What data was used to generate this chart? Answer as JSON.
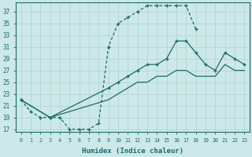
{
  "xlabel": "Humidex (Indice chaleur)",
  "xlim": [
    -0.5,
    23.5
  ],
  "ylim": [
    16.5,
    38.5
  ],
  "xticks": [
    0,
    1,
    2,
    3,
    4,
    5,
    6,
    7,
    8,
    9,
    10,
    11,
    12,
    13,
    14,
    15,
    16,
    17,
    18,
    19,
    20,
    21,
    22,
    23
  ],
  "yticks": [
    17,
    19,
    21,
    23,
    25,
    27,
    29,
    31,
    33,
    35,
    37
  ],
  "bg_color": "#cce8e8",
  "line_color": "#1a6b6b",
  "grid_color": "#b8d8d8",
  "curve1_x": [
    0,
    1,
    2,
    3,
    4,
    5,
    6,
    7,
    8,
    9,
    10,
    11,
    12,
    13,
    14,
    15,
    16,
    17,
    18
  ],
  "curve1_y": [
    22,
    20,
    19,
    19,
    19,
    17,
    17,
    17,
    18,
    31,
    35,
    36,
    37,
    38,
    38,
    38,
    38,
    38,
    34
  ],
  "curve2_x": [
    0,
    3,
    9,
    10,
    11,
    12,
    13,
    14,
    15,
    16,
    17,
    18,
    19,
    20,
    21,
    22,
    23
  ],
  "curve2_y": [
    22,
    19,
    24,
    25,
    26,
    27,
    28,
    28,
    29,
    32,
    32,
    30,
    28,
    27,
    30,
    29,
    28
  ],
  "curve3_x": [
    0,
    3,
    9,
    10,
    11,
    12,
    13,
    14,
    15,
    16,
    17,
    18,
    19,
    20,
    21,
    22,
    23
  ],
  "curve3_y": [
    22,
    19,
    22,
    23,
    24,
    25,
    25,
    26,
    26,
    27,
    27,
    26,
    26,
    26,
    28,
    27,
    27
  ]
}
